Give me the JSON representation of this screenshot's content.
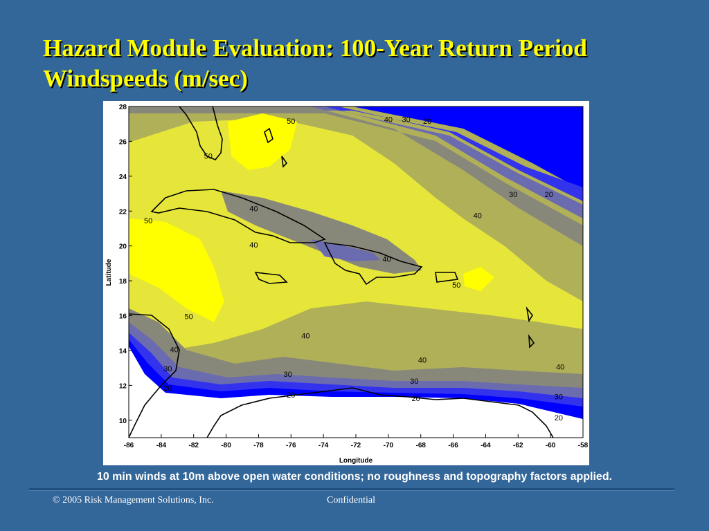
{
  "slide": {
    "title_line1": "Hazard Module Evaluation: 100-Year Return Period",
    "title_line2": "Windspeeds (m/sec)",
    "caption": "10 min winds at 10m above open water conditions; no roughness and topography factors applied.",
    "footer_left": "© 2005 Risk Management Solutions, Inc.",
    "footer_right": "Confidential"
  },
  "map": {
    "type": "contour",
    "x_axis": {
      "label": "Longitude",
      "ticks": [
        "-86",
        "-84",
        "-82",
        "-80",
        "-78",
        "-76",
        "-74",
        "-72",
        "-70",
        "-68",
        "-66",
        "-64",
        "-62",
        "-60",
        "-58"
      ]
    },
    "y_axis": {
      "label": "Latitude",
      "ticks": [
        "28",
        "26",
        "24",
        "22",
        "20",
        "18",
        "16",
        "14",
        "12",
        "10"
      ]
    },
    "contour_labels": [
      {
        "text": "50",
        "lon": -81.1,
        "lat": 25.0
      },
      {
        "text": "50",
        "lon": -76.0,
        "lat": 27.0
      },
      {
        "text": "40",
        "lon": -70.0,
        "lat": 27.1
      },
      {
        "text": "30",
        "lon": -68.9,
        "lat": 27.1
      },
      {
        "text": "20",
        "lon": -67.6,
        "lat": 27.0
      },
      {
        "text": "40",
        "lon": -78.3,
        "lat": 22.0
      },
      {
        "text": "50",
        "lon": -84.8,
        "lat": 21.3
      },
      {
        "text": "40",
        "lon": -78.3,
        "lat": 19.9
      },
      {
        "text": "40",
        "lon": -70.1,
        "lat": 19.1
      },
      {
        "text": "30",
        "lon": -62.3,
        "lat": 22.8
      },
      {
        "text": "20",
        "lon": -60.1,
        "lat": 22.8
      },
      {
        "text": "40",
        "lon": -64.5,
        "lat": 21.6
      },
      {
        "text": "50",
        "lon": -65.8,
        "lat": 17.6
      },
      {
        "text": "50",
        "lon": -82.3,
        "lat": 15.8
      },
      {
        "text": "40",
        "lon": -75.1,
        "lat": 14.7
      },
      {
        "text": "40",
        "lon": -83.2,
        "lat": 13.9
      },
      {
        "text": "30",
        "lon": -83.6,
        "lat": 12.8
      },
      {
        "text": "20",
        "lon": -83.6,
        "lat": 11.7
      },
      {
        "text": "30",
        "lon": -76.2,
        "lat": 12.5
      },
      {
        "text": "20",
        "lon": -76.0,
        "lat": 11.3
      },
      {
        "text": "40",
        "lon": -67.9,
        "lat": 13.3
      },
      {
        "text": "30",
        "lon": -68.4,
        "lat": 12.1
      },
      {
        "text": "20",
        "lon": -68.3,
        "lat": 11.1
      },
      {
        "text": "40",
        "lon": -59.4,
        "lat": 12.9
      },
      {
        "text": "30",
        "lon": -59.5,
        "lat": 11.2
      },
      {
        "text": "20",
        "lon": -59.5,
        "lat": 10.0
      }
    ],
    "colors": {
      "water_50": "#ffff00",
      "band_45": "#e6e63a",
      "band_40": "#b0b058",
      "band_35": "#88887a",
      "band_30": "#6b6bb0",
      "band_25": "#3333ee",
      "band_20": "#0000ff",
      "land_outline": "#000000",
      "below_20": "#ffffff"
    }
  }
}
